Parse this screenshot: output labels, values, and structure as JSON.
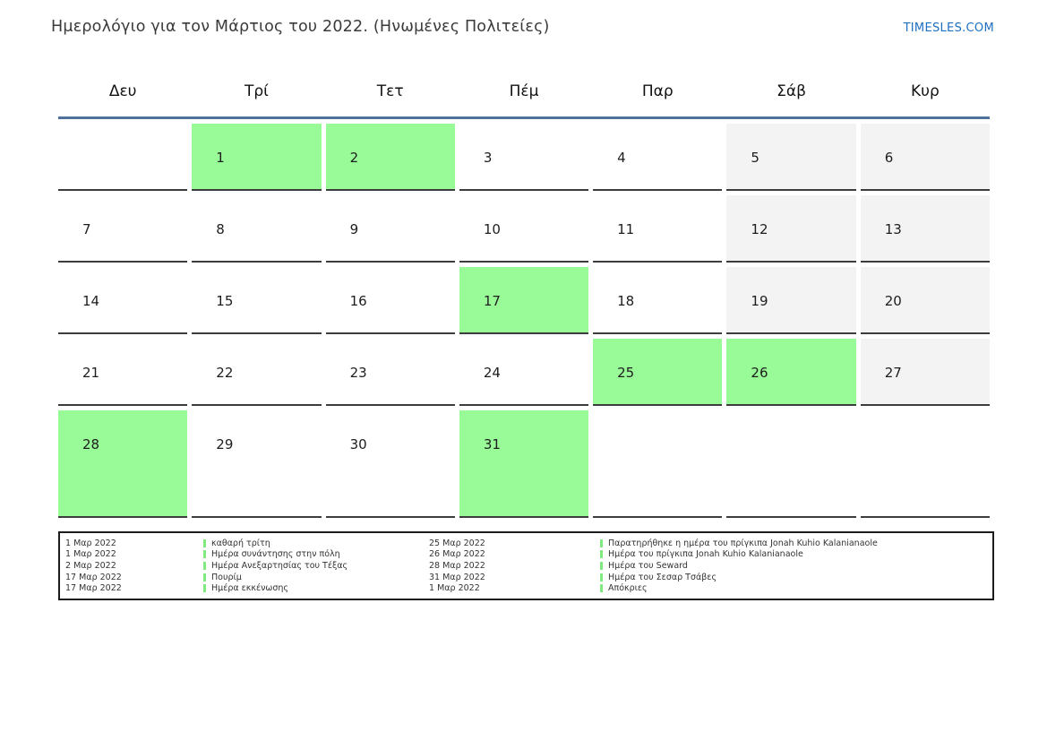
{
  "header": {
    "title": "Ημερολόγιο για τον Μάρτιος του 2022. (Ηνωμένες Πολιτείες)",
    "site_link": "TIMESLES.COM"
  },
  "colors": {
    "holiday_bg": "#98FB98",
    "weekend_bg": "#f3f3f3",
    "header_line": "#4f719a",
    "cell_border": "#3d3d3d",
    "link_blue": "#1d6fc1",
    "legend_marker": "#80e980"
  },
  "calendar": {
    "day_headers": [
      "Δευ",
      "Τρί",
      "Τετ",
      "Πέμ",
      "Παρ",
      "Σάβ",
      "Κυρ"
    ],
    "weeks": [
      [
        {
          "day": "",
          "type": "empty"
        },
        {
          "day": "1",
          "type": "holiday"
        },
        {
          "day": "2",
          "type": "holiday"
        },
        {
          "day": "3",
          "type": "normal"
        },
        {
          "day": "4",
          "type": "normal"
        },
        {
          "day": "5",
          "type": "weekend"
        },
        {
          "day": "6",
          "type": "weekend"
        }
      ],
      [
        {
          "day": "7",
          "type": "normal"
        },
        {
          "day": "8",
          "type": "normal"
        },
        {
          "day": "9",
          "type": "normal"
        },
        {
          "day": "10",
          "type": "normal"
        },
        {
          "day": "11",
          "type": "normal"
        },
        {
          "day": "12",
          "type": "weekend"
        },
        {
          "day": "13",
          "type": "weekend"
        }
      ],
      [
        {
          "day": "14",
          "type": "normal"
        },
        {
          "day": "15",
          "type": "normal"
        },
        {
          "day": "16",
          "type": "normal"
        },
        {
          "day": "17",
          "type": "holiday"
        },
        {
          "day": "18",
          "type": "normal"
        },
        {
          "day": "19",
          "type": "weekend"
        },
        {
          "day": "20",
          "type": "weekend"
        }
      ],
      [
        {
          "day": "21",
          "type": "normal"
        },
        {
          "day": "22",
          "type": "normal"
        },
        {
          "day": "23",
          "type": "normal"
        },
        {
          "day": "24",
          "type": "normal"
        },
        {
          "day": "25",
          "type": "holiday"
        },
        {
          "day": "26",
          "type": "holiday"
        },
        {
          "day": "27",
          "type": "weekend"
        }
      ],
      [
        {
          "day": "28",
          "type": "holiday"
        },
        {
          "day": "29",
          "type": "normal"
        },
        {
          "day": "30",
          "type": "normal"
        },
        {
          "day": "31",
          "type": "holiday"
        },
        {
          "day": "",
          "type": "empty"
        },
        {
          "day": "",
          "type": "empty"
        },
        {
          "day": "",
          "type": "empty"
        }
      ]
    ]
  },
  "legend": {
    "columns": [
      {
        "entries": [
          {
            "date": "1 Μαρ 2022",
            "name": "καθαρή τρίτη"
          },
          {
            "date": "1 Μαρ 2022",
            "name": "Ημέρα συνάντησης στην πόλη"
          },
          {
            "date": "2 Μαρ 2022",
            "name": "Ημέρα Ανεξαρτησίας του Τέξας"
          },
          {
            "date": "17 Μαρ 2022",
            "name": "Πουρίμ"
          },
          {
            "date": "17 Μαρ 2022",
            "name": "Ημέρα εκκένωσης"
          }
        ]
      },
      {
        "entries": [
          {
            "date": "25 Μαρ 2022",
            "name": "Παρατηρήθηκε η ημέρα του πρίγκιπα Jonah Kuhio Kalanianaole"
          },
          {
            "date": "26 Μαρ 2022",
            "name": "Ημέρα του πρίγκιπα Jonah Kuhio Kalanianaole"
          },
          {
            "date": "28 Μαρ 2022",
            "name": "Ημέρα του Seward"
          },
          {
            "date": "31 Μαρ 2022",
            "name": "Ημέρα του Σεσαρ Τσάβες"
          },
          {
            "date": "1 Μαρ 2022",
            "name": "Απόκριες"
          }
        ]
      }
    ]
  }
}
